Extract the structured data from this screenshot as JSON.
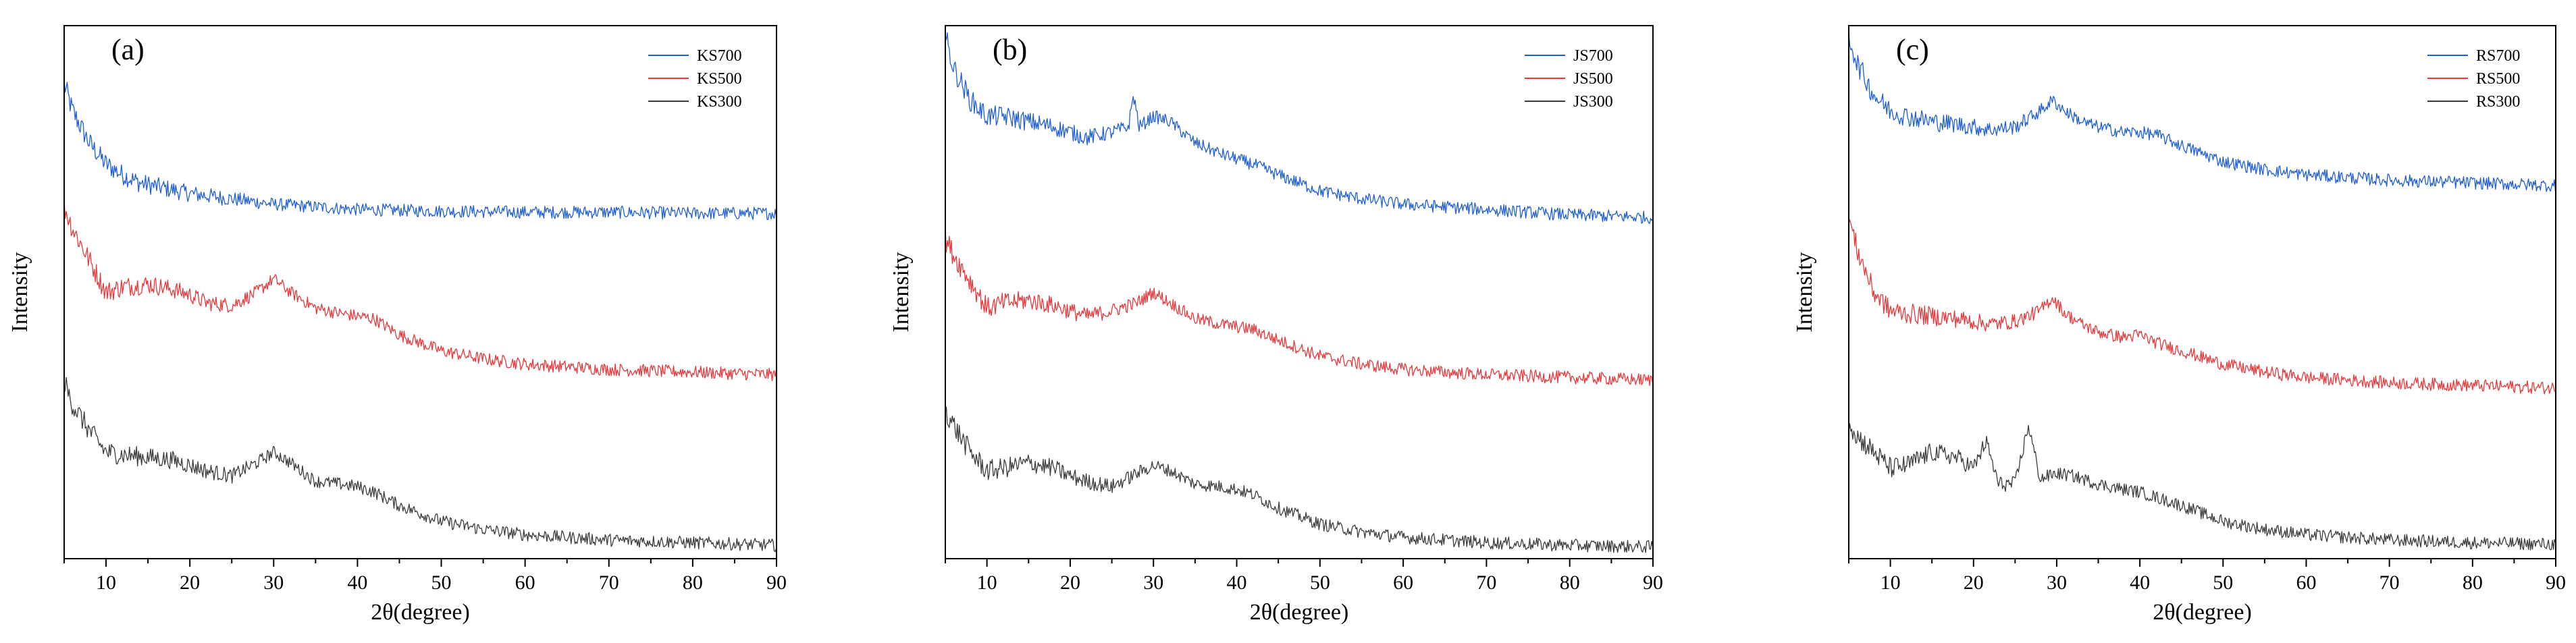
{
  "chart_data": [
    {
      "type": "line",
      "panel_label": "(a)",
      "xlabel": "2θ(degree)",
      "ylabel": "Intensity",
      "xlim": [
        5,
        90
      ],
      "ylim": [
        0,
        1
      ],
      "x_ticks": [
        10,
        20,
        30,
        40,
        50,
        60,
        70,
        80,
        90
      ],
      "y_ticks_visible": false,
      "legend_position": "top-right",
      "series": [
        {
          "name": "KS700",
          "color": "#1f5fd6",
          "x": [
            5,
            6,
            8,
            10,
            12,
            14,
            17,
            20,
            25,
            30,
            35,
            40,
            50,
            60,
            70,
            80,
            90
          ],
          "y": [
            0.89,
            0.84,
            0.78,
            0.74,
            0.72,
            0.705,
            0.695,
            0.685,
            0.675,
            0.665,
            0.66,
            0.655,
            0.652,
            0.65,
            0.65,
            0.648,
            0.648
          ]
        },
        {
          "name": "KS500",
          "color": "#e8383b",
          "x": [
            5,
            6,
            8,
            10,
            12,
            15,
            18,
            20,
            22,
            25,
            28,
            30,
            32,
            35,
            38,
            40,
            42,
            45,
            50,
            55,
            60,
            70,
            80,
            90
          ],
          "y": [
            0.66,
            0.62,
            0.56,
            0.5,
            0.51,
            0.515,
            0.505,
            0.495,
            0.48,
            0.475,
            0.5,
            0.525,
            0.5,
            0.47,
            0.46,
            0.455,
            0.45,
            0.42,
            0.39,
            0.375,
            0.365,
            0.355,
            0.35,
            0.345
          ]
        },
        {
          "name": "KS300",
          "color": "#3c3c3c",
          "x": [
            5,
            6,
            8,
            10,
            12,
            15,
            18,
            20,
            22,
            25,
            28,
            30,
            32,
            35,
            38,
            40,
            42,
            45,
            50,
            55,
            60,
            70,
            80,
            90
          ],
          "y": [
            0.33,
            0.29,
            0.24,
            0.2,
            0.195,
            0.19,
            0.185,
            0.175,
            0.165,
            0.155,
            0.18,
            0.2,
            0.18,
            0.145,
            0.14,
            0.135,
            0.125,
            0.1,
            0.07,
            0.055,
            0.045,
            0.035,
            0.03,
            0.025
          ]
        }
      ]
    },
    {
      "type": "line",
      "panel_label": "(b)",
      "xlabel": "2θ(degree)",
      "ylabel": "Intensity",
      "xlim": [
        5,
        90
      ],
      "ylim": [
        0,
        1
      ],
      "x_ticks": [
        10,
        20,
        30,
        40,
        50,
        60,
        70,
        80,
        90
      ],
      "y_ticks_visible": false,
      "legend_position": "top-right",
      "series": [
        {
          "name": "JS700",
          "color": "#1f5fd6",
          "x": [
            5,
            6,
            8,
            10,
            12,
            15,
            18,
            20,
            22,
            25,
            27,
            27.6,
            28.3,
            30,
            32,
            35,
            38,
            40,
            42,
            45,
            50,
            55,
            60,
            70,
            80,
            90
          ],
          "y": [
            0.98,
            0.92,
            0.86,
            0.83,
            0.83,
            0.82,
            0.81,
            0.8,
            0.79,
            0.8,
            0.81,
            0.87,
            0.81,
            0.83,
            0.82,
            0.78,
            0.76,
            0.75,
            0.74,
            0.72,
            0.69,
            0.675,
            0.665,
            0.655,
            0.645,
            0.64
          ]
        },
        {
          "name": "JS500",
          "color": "#e8383b",
          "x": [
            5,
            6,
            8,
            10,
            12,
            15,
            18,
            20,
            22,
            25,
            28,
            30,
            32,
            35,
            38,
            40,
            42,
            45,
            50,
            55,
            60,
            70,
            80,
            90
          ],
          "y": [
            0.6,
            0.57,
            0.52,
            0.47,
            0.48,
            0.485,
            0.475,
            0.465,
            0.455,
            0.465,
            0.48,
            0.5,
            0.48,
            0.45,
            0.44,
            0.435,
            0.43,
            0.41,
            0.38,
            0.365,
            0.355,
            0.345,
            0.34,
            0.335
          ]
        },
        {
          "name": "JS300",
          "color": "#3c3c3c",
          "x": [
            5,
            6,
            8,
            10,
            12,
            15,
            18,
            20,
            22,
            25,
            28,
            30,
            32,
            35,
            38,
            40,
            42,
            45,
            50,
            55,
            60,
            70,
            80,
            90
          ],
          "y": [
            0.28,
            0.25,
            0.2,
            0.165,
            0.17,
            0.18,
            0.17,
            0.155,
            0.145,
            0.135,
            0.16,
            0.175,
            0.165,
            0.14,
            0.135,
            0.13,
            0.12,
            0.095,
            0.065,
            0.05,
            0.04,
            0.03,
            0.025,
            0.022
          ]
        }
      ]
    },
    {
      "type": "line",
      "panel_label": "(c)",
      "xlabel": "2θ(degree)",
      "ylabel": "Intensity",
      "xlim": [
        5,
        90
      ],
      "ylim": [
        0,
        1
      ],
      "x_ticks": [
        10,
        20,
        30,
        40,
        50,
        60,
        70,
        80,
        90
      ],
      "y_ticks_visible": false,
      "legend_position": "top-right",
      "series": [
        {
          "name": "RS700",
          "color": "#1f5fd6",
          "x": [
            5,
            6,
            8,
            10,
            12,
            15,
            18,
            20,
            22,
            25,
            28,
            29.5,
            31,
            33,
            35,
            38,
            40,
            42,
            45,
            50,
            55,
            60,
            70,
            80,
            90
          ],
          "y": [
            0.98,
            0.93,
            0.87,
            0.84,
            0.83,
            0.82,
            0.815,
            0.81,
            0.805,
            0.81,
            0.84,
            0.86,
            0.84,
            0.82,
            0.81,
            0.8,
            0.8,
            0.795,
            0.775,
            0.745,
            0.73,
            0.72,
            0.71,
            0.705,
            0.7
          ]
        },
        {
          "name": "RS500",
          "color": "#e8383b",
          "x": [
            5,
            6,
            8,
            10,
            12,
            15,
            18,
            20,
            22,
            25,
            28,
            29.5,
            31,
            33,
            35,
            38,
            40,
            42,
            45,
            50,
            55,
            60,
            70,
            80,
            90
          ],
          "y": [
            0.64,
            0.58,
            0.5,
            0.465,
            0.46,
            0.455,
            0.45,
            0.445,
            0.44,
            0.445,
            0.465,
            0.49,
            0.46,
            0.44,
            0.425,
            0.415,
            0.42,
            0.405,
            0.39,
            0.365,
            0.35,
            0.34,
            0.33,
            0.325,
            0.32
          ]
        },
        {
          "name": "RS300",
          "color": "#3c3c3c",
          "x": [
            5,
            6,
            8,
            10,
            12,
            15,
            18,
            20,
            21.5,
            23,
            25,
            26.6,
            28,
            30,
            32,
            35,
            38,
            40,
            42,
            45,
            50,
            55,
            60,
            70,
            80,
            90
          ],
          "y": [
            0.26,
            0.23,
            0.2,
            0.17,
            0.175,
            0.2,
            0.19,
            0.17,
            0.22,
            0.14,
            0.14,
            0.25,
            0.15,
            0.16,
            0.155,
            0.14,
            0.13,
            0.125,
            0.115,
            0.1,
            0.07,
            0.055,
            0.045,
            0.035,
            0.03,
            0.027
          ]
        }
      ]
    }
  ]
}
